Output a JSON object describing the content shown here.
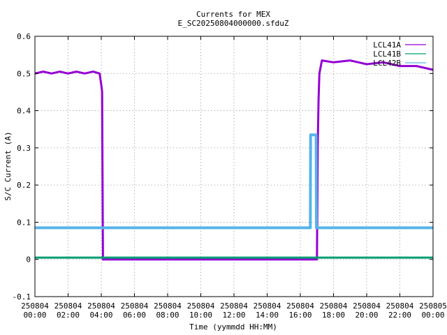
{
  "chart_data": {
    "type": "line",
    "title": "Currents for MEX",
    "subtitle": "E_SC20250804000000.sfduZ",
    "xlabel": "Time (yymmdd HH:MM)",
    "ylabel": "S/C Current (A)",
    "xlim_hours": [
      0,
      24
    ],
    "ylim": [
      -0.1,
      0.6
    ],
    "yticks": [
      "-0.1",
      "0",
      "0.1",
      "0.2",
      "0.3",
      "0.4",
      "0.5",
      "0.6"
    ],
    "xticks": [
      {
        "date": "250804",
        "time": "00:00"
      },
      {
        "date": "250804",
        "time": "02:00"
      },
      {
        "date": "250804",
        "time": "04:00"
      },
      {
        "date": "250804",
        "time": "06:00"
      },
      {
        "date": "250804",
        "time": "08:00"
      },
      {
        "date": "250804",
        "time": "10:00"
      },
      {
        "date": "250804",
        "time": "12:00"
      },
      {
        "date": "250804",
        "time": "14:00"
      },
      {
        "date": "250804",
        "time": "16:00"
      },
      {
        "date": "250804",
        "time": "18:00"
      },
      {
        "date": "250804",
        "time": "20:00"
      },
      {
        "date": "250804",
        "time": "22:00"
      },
      {
        "date": "250805",
        "time": "00:00"
      }
    ],
    "grid": true,
    "legend_position": "top-right",
    "series": [
      {
        "name": "LCL41A",
        "color": "#9400d3",
        "x": [
          0,
          0.5,
          1,
          1.5,
          2,
          2.5,
          3,
          3.5,
          3.9,
          4.0,
          4.05,
          4.1,
          5,
          8,
          12,
          16,
          16.9,
          17.0,
          17.05,
          17.1,
          17.15,
          17.3,
          18,
          19,
          20,
          21,
          22,
          23,
          24
        ],
        "y": [
          0.5,
          0.505,
          0.5,
          0.505,
          0.5,
          0.505,
          0.5,
          0.505,
          0.5,
          0.47,
          0.45,
          0.0,
          0.0,
          0.0,
          0.0,
          0.0,
          0.0,
          0.0,
          0.3,
          0.43,
          0.5,
          0.535,
          0.53,
          0.535,
          0.525,
          0.53,
          0.52,
          0.52,
          0.51
        ]
      },
      {
        "name": "LCL41B",
        "color": "#009e73",
        "x": [
          0,
          24
        ],
        "y": [
          0.005,
          0.005
        ]
      },
      {
        "name": "LCL42B",
        "color": "#56b4e9",
        "x": [
          0,
          16.6,
          16.62,
          16.95,
          16.97,
          24
        ],
        "y": [
          0.085,
          0.085,
          0.335,
          0.335,
          0.085,
          0.085
        ]
      }
    ]
  }
}
